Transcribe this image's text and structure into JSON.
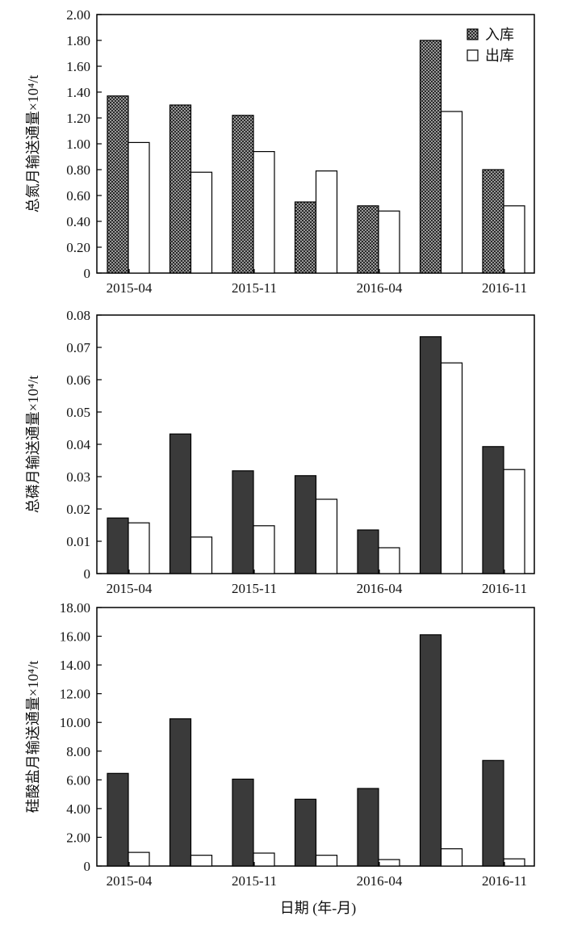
{
  "colors": {
    "stroke": "#000000",
    "background": "#ffffff",
    "inbound_fill": "#3a3a3a",
    "outbound_fill": "#ffffff"
  },
  "xlabel": "日期 (年-月)",
  "legend": {
    "placement": "top-right",
    "inbound": "入库",
    "outbound": "出库"
  },
  "chart_data": [
    {
      "type": "bar",
      "ylabel": "总氮月输送通量×10⁴/t",
      "ylim": [
        0,
        2.0
      ],
      "yticks": [
        "0",
        "0.20",
        "0.40",
        "0.60",
        "0.80",
        "1.00",
        "1.20",
        "1.40",
        "1.60",
        "1.80",
        "2.00"
      ],
      "xtick_labels": [
        "2015-04",
        "2015-11",
        "2016-04",
        "2016-11"
      ],
      "group_count": 7,
      "series": [
        {
          "name": "入库",
          "values": [
            1.37,
            1.3,
            1.22,
            0.55,
            0.52,
            1.8,
            0.8
          ]
        },
        {
          "name": "出库",
          "values": [
            1.01,
            0.78,
            0.94,
            0.79,
            0.48,
            1.25,
            0.52
          ]
        }
      ]
    },
    {
      "type": "bar",
      "ylabel": "总磷月输送通量×10⁴/t",
      "ylim": [
        0,
        0.08
      ],
      "yticks": [
        "0",
        "0.01",
        "0.02",
        "0.03",
        "0.04",
        "0.05",
        "0.06",
        "0.07",
        "0.08"
      ],
      "xtick_labels": [
        "2015-04",
        "2015-11",
        "2016-04",
        "2016-11"
      ],
      "group_count": 7,
      "series": [
        {
          "name": "入库",
          "values": [
            0.0172,
            0.0432,
            0.0318,
            0.0303,
            0.0135,
            0.0733,
            0.0393
          ]
        },
        {
          "name": "出库",
          "values": [
            0.0157,
            0.0113,
            0.0148,
            0.023,
            0.008,
            0.0652,
            0.0322
          ]
        }
      ]
    },
    {
      "type": "bar",
      "ylabel": "硅酸盐月输送通量×10⁴/t",
      "ylim": [
        0,
        18.0
      ],
      "yticks": [
        "0",
        "2.00",
        "4.00",
        "6.00",
        "8.00",
        "10.00",
        "12.00",
        "14.00",
        "16.00",
        "18.00"
      ],
      "xtick_labels": [
        "2015-04",
        "2015-11",
        "2016-04",
        "2016-11"
      ],
      "group_count": 7,
      "series": [
        {
          "name": "入库",
          "values": [
            6.45,
            10.25,
            6.05,
            4.65,
            5.4,
            16.1,
            7.35
          ]
        },
        {
          "name": "出库",
          "values": [
            0.95,
            0.75,
            0.9,
            0.75,
            0.45,
            1.2,
            0.5
          ]
        }
      ]
    }
  ]
}
